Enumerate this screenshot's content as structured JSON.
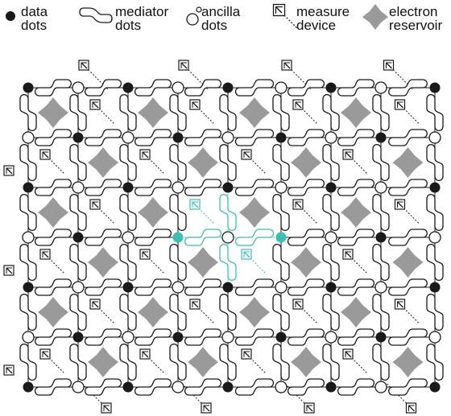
{
  "legend": {
    "data_dots": "data\ndots",
    "mediator_dots": "mediator\ndots",
    "ancilla_dots": "ancilla\ndots",
    "measure_device": "measure\ndevice",
    "electron_reservoir": "electron\nreservoir"
  },
  "colors": {
    "line": "#1a1a1a",
    "data_dot": "#1a1a1a",
    "reservoir": "#9a9a9a",
    "highlight": "#3bbfb4"
  },
  "icons": [
    "data-dot-icon",
    "mediator-dot-icon",
    "ancilla-dot-icon",
    "measure-device-icon",
    "electron-reservoir-icon"
  ]
}
